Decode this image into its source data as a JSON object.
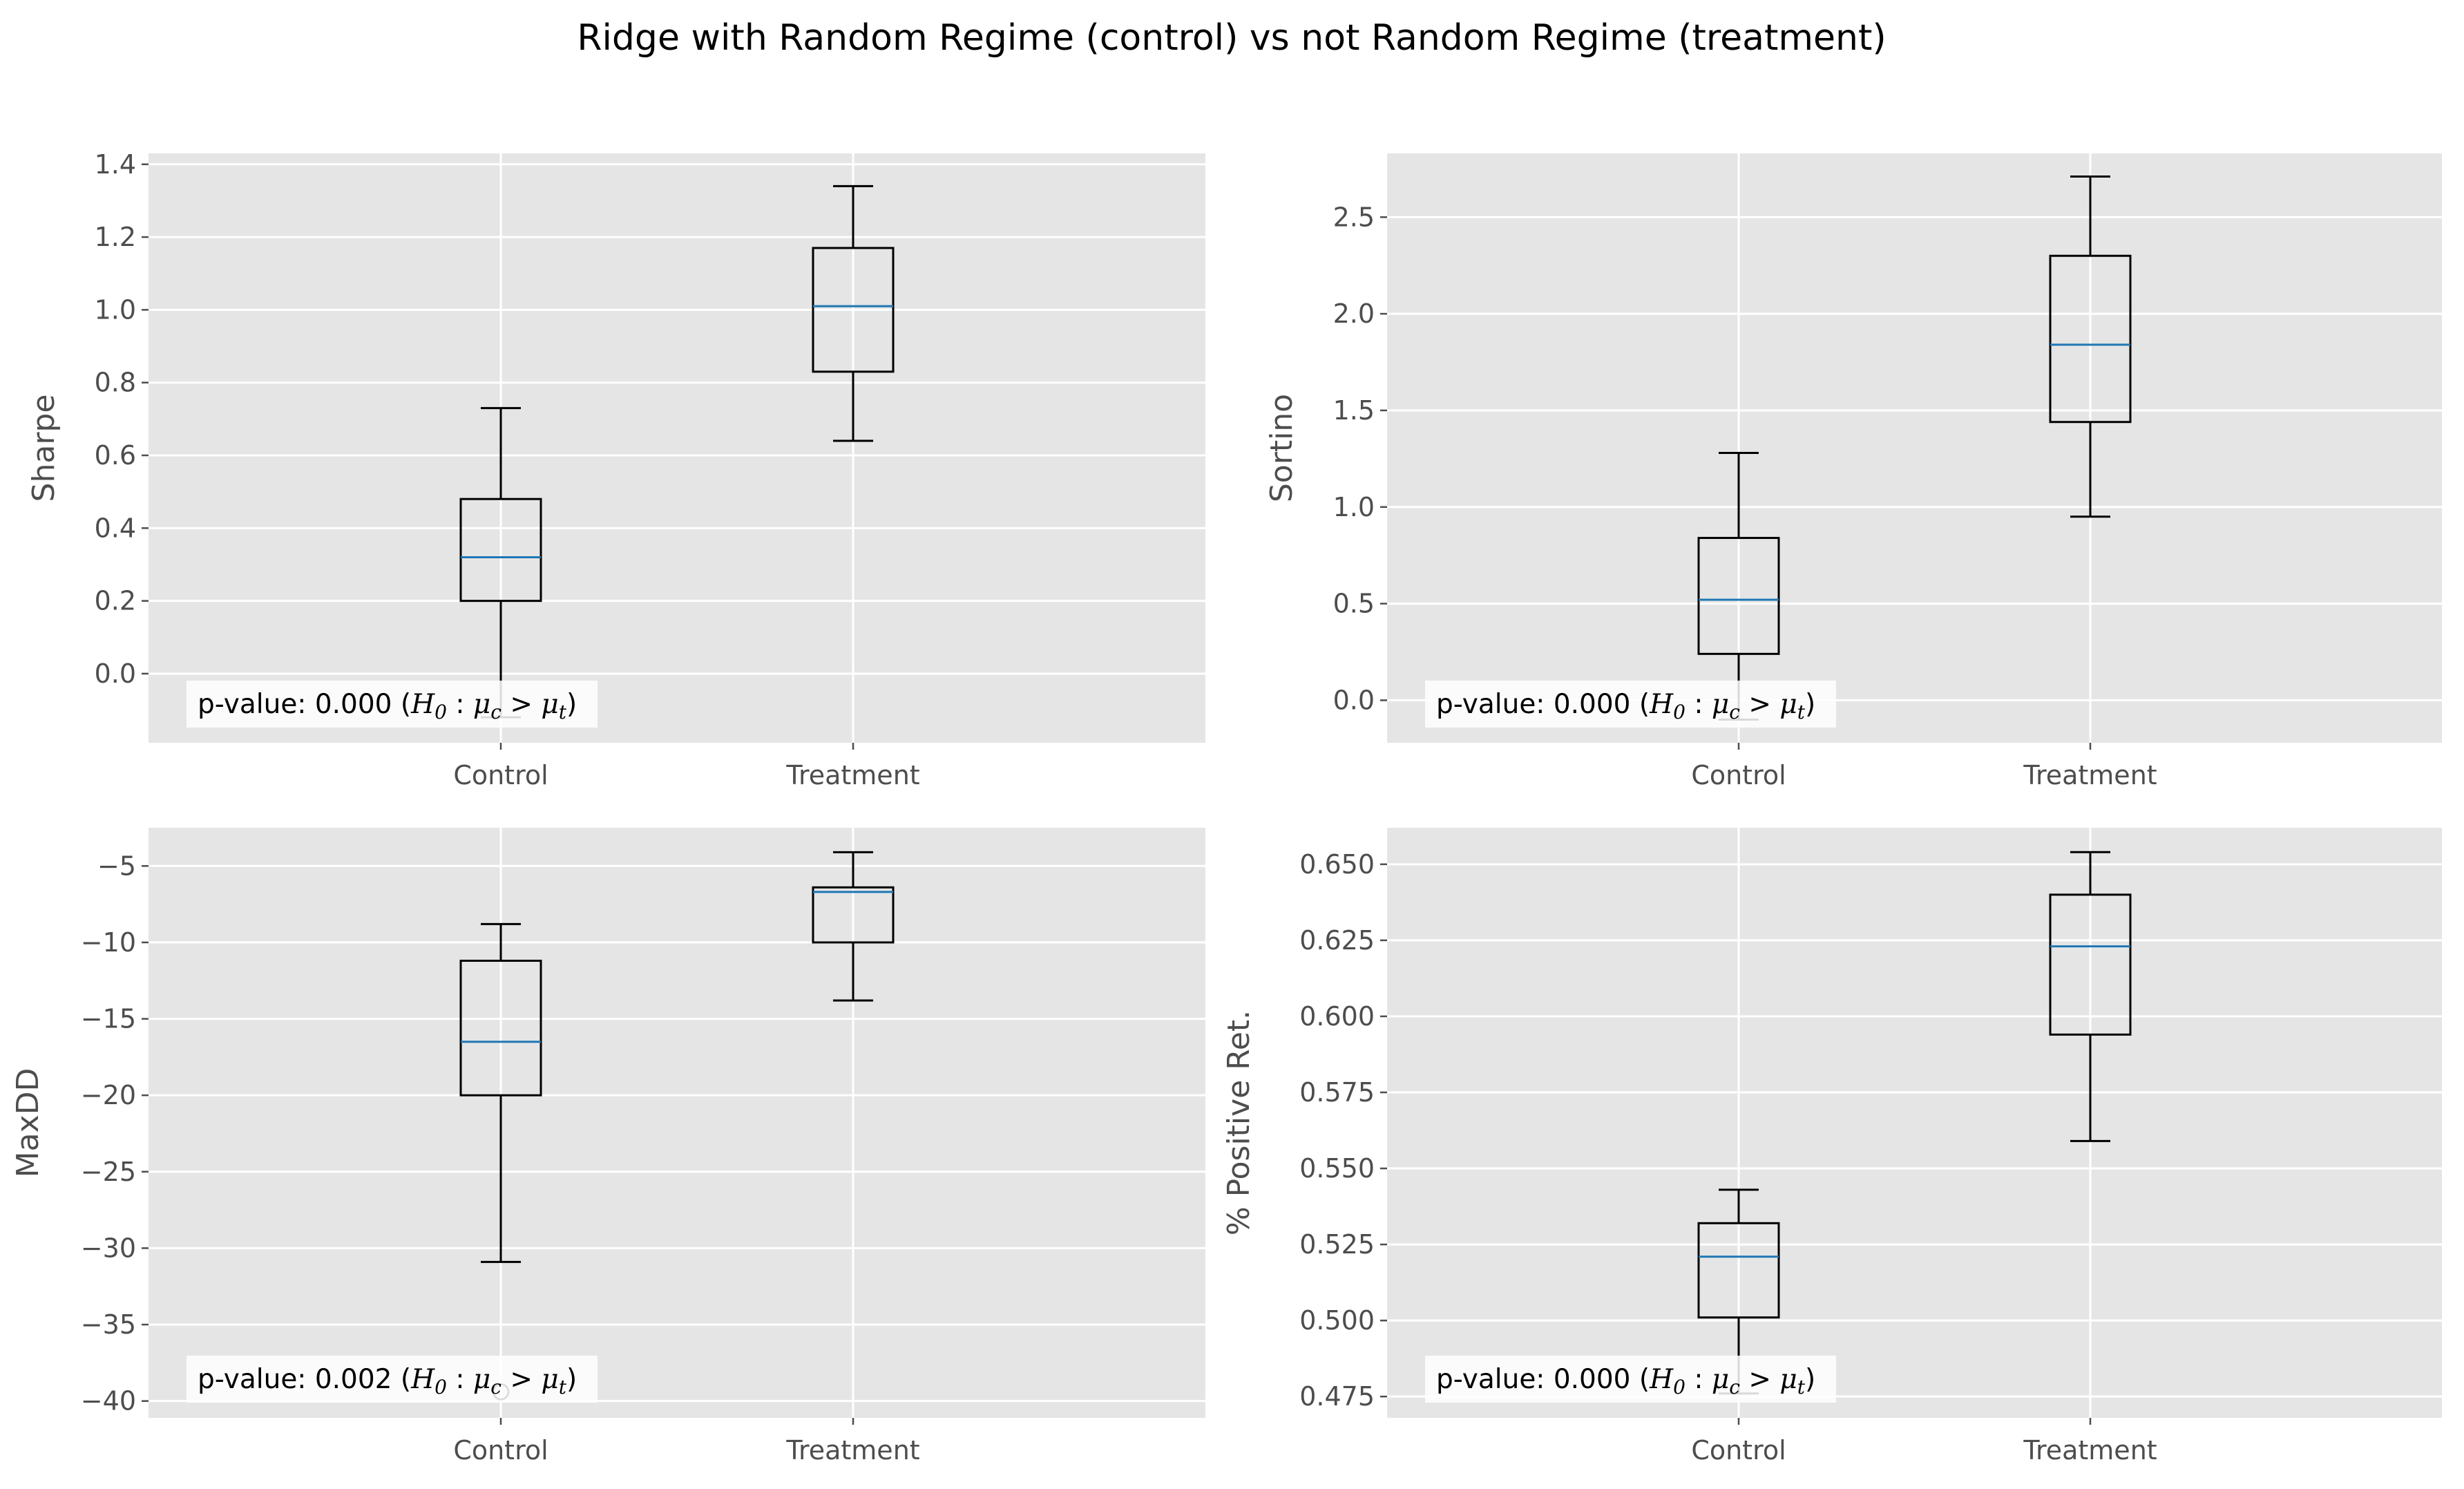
{
  "title": "Ridge with Random Regime (control) vs not Random Regime (treatment)",
  "chart_data": [
    {
      "type": "box",
      "ylabel": "Sharpe",
      "categories": [
        "Control",
        "Treatment"
      ],
      "ylim": [
        -0.19,
        1.43
      ],
      "yticks": [
        0.0,
        0.2,
        0.4,
        0.6,
        0.8,
        1.0,
        1.2,
        1.4
      ],
      "ytick_labels": [
        "0.0",
        "0.2",
        "0.4",
        "0.6",
        "0.8",
        "1.0",
        "1.2",
        "1.4"
      ],
      "boxes": [
        {
          "whislo": -0.12,
          "q1": 0.2,
          "med": 0.32,
          "q3": 0.48,
          "whishi": 0.73,
          "fliers": []
        },
        {
          "whislo": 0.64,
          "q1": 0.83,
          "med": 1.01,
          "q3": 1.17,
          "whishi": 1.34,
          "fliers": []
        }
      ],
      "annotation": {
        "prefix": "p-value: 0.000 (",
        "math_h": "H",
        "math_h_sub": "0",
        "math_colon": " : ",
        "math_mu1": "μ",
        "math_mu1_sub": "c",
        "math_gt": " > ",
        "math_mu2": "μ",
        "math_mu2_sub": "t",
        "suffix": ")"
      }
    },
    {
      "type": "box",
      "ylabel": "Sortino",
      "categories": [
        "Control",
        "Treatment"
      ],
      "ylim": [
        -0.22,
        2.83
      ],
      "yticks": [
        0.0,
        0.5,
        1.0,
        1.5,
        2.0,
        2.5
      ],
      "ytick_labels": [
        "0.0",
        "0.5",
        "1.0",
        "1.5",
        "2.0",
        "2.5"
      ],
      "boxes": [
        {
          "whislo": -0.1,
          "q1": 0.24,
          "med": 0.52,
          "q3": 0.84,
          "whishi": 1.28,
          "fliers": []
        },
        {
          "whislo": 0.95,
          "q1": 1.44,
          "med": 1.84,
          "q3": 2.3,
          "whishi": 2.71,
          "fliers": []
        }
      ],
      "annotation": {
        "prefix": "p-value: 0.000 (",
        "math_h": "H",
        "math_h_sub": "0",
        "math_colon": " : ",
        "math_mu1": "μ",
        "math_mu1_sub": "c",
        "math_gt": " > ",
        "math_mu2": "μ",
        "math_mu2_sub": "t",
        "suffix": ")"
      }
    },
    {
      "type": "box",
      "ylabel": "MaxDD",
      "categories": [
        "Control",
        "Treatment"
      ],
      "ylim": [
        -41.1,
        -2.5
      ],
      "yticks": [
        -40,
        -35,
        -30,
        -25,
        -20,
        -15,
        -10,
        -5
      ],
      "ytick_labels": [
        "−40",
        "−35",
        "−30",
        "−25",
        "−20",
        "−15",
        "−10",
        "−5"
      ],
      "boxes": [
        {
          "whislo": -30.9,
          "q1": -20.0,
          "med": -16.5,
          "q3": -11.2,
          "whishi": -8.8,
          "fliers": [
            -39.4
          ]
        },
        {
          "whislo": -13.8,
          "q1": -10.0,
          "med": -6.7,
          "q3": -6.4,
          "whishi": -4.1,
          "fliers": []
        }
      ],
      "annotation": {
        "prefix": "p-value: 0.002 (",
        "math_h": "H",
        "math_h_sub": "0",
        "math_colon": " : ",
        "math_mu1": "μ",
        "math_mu1_sub": "c",
        "math_gt": " > ",
        "math_mu2": "μ",
        "math_mu2_sub": "t",
        "suffix": ")"
      }
    },
    {
      "type": "box",
      "ylabel": "% Positive Ret.",
      "categories": [
        "Control",
        "Treatment"
      ],
      "ylim": [
        0.468,
        0.662
      ],
      "yticks": [
        0.475,
        0.5,
        0.525,
        0.55,
        0.575,
        0.6,
        0.625,
        0.65
      ],
      "ytick_labels": [
        "0.475",
        "0.500",
        "0.525",
        "0.550",
        "0.575",
        "0.600",
        "0.625",
        "0.650"
      ],
      "boxes": [
        {
          "whislo": 0.476,
          "q1": 0.501,
          "med": 0.521,
          "q3": 0.532,
          "whishi": 0.543,
          "fliers": []
        },
        {
          "whislo": 0.559,
          "q1": 0.594,
          "med": 0.623,
          "q3": 0.64,
          "whishi": 0.654,
          "fliers": []
        }
      ],
      "annotation": {
        "prefix": "p-value: 0.000 (",
        "math_h": "H",
        "math_h_sub": "0",
        "math_colon": " : ",
        "math_mu1": "μ",
        "math_mu1_sub": "c",
        "math_gt": " > ",
        "math_mu2": "μ",
        "math_mu2_sub": "t",
        "suffix": ")"
      }
    }
  ],
  "colors": {
    "axes_bg": "#e5e5e5",
    "grid": "#ffffff",
    "box": "#000000",
    "median": "#1f77b4",
    "tick_label": "#4d4d4d",
    "tick_mark": "#4d4d4d"
  }
}
